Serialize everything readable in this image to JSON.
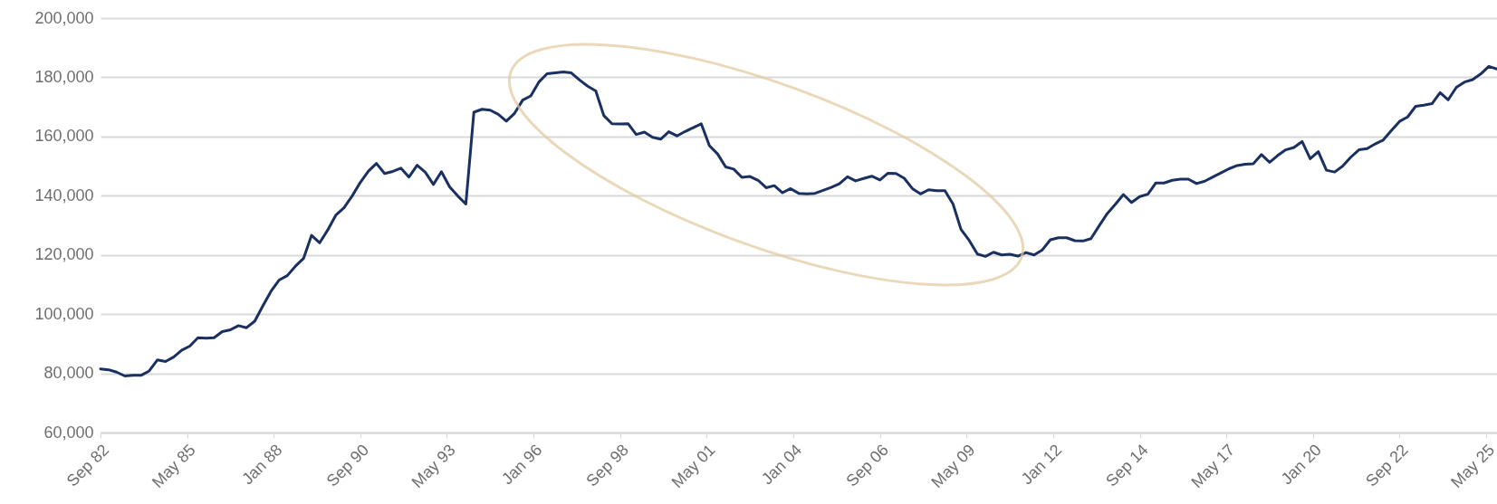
{
  "chart_data": {
    "type": "line",
    "x": [
      "1982-09",
      "1982-12",
      "1983-03",
      "1983-06",
      "1983-09",
      "1983-12",
      "1984-03",
      "1984-06",
      "1984-09",
      "1984-12",
      "1985-03",
      "1985-06",
      "1985-09",
      "1985-12",
      "1986-03",
      "1986-06",
      "1986-09",
      "1986-12",
      "1987-03",
      "1987-06",
      "1987-09",
      "1987-12",
      "1988-03",
      "1988-06",
      "1988-09",
      "1988-12",
      "1989-03",
      "1989-06",
      "1989-09",
      "1989-12",
      "1990-03",
      "1990-06",
      "1990-09",
      "1990-12",
      "1991-03",
      "1991-06",
      "1991-09",
      "1991-12",
      "1992-03",
      "1992-06",
      "1992-09",
      "1992-12",
      "1993-03",
      "1993-06",
      "1993-09",
      "1993-12",
      "1994-03",
      "1994-06",
      "1994-09",
      "1994-12",
      "1995-03",
      "1995-06",
      "1995-09",
      "1995-12",
      "1996-03",
      "1996-06",
      "1996-09",
      "1996-12",
      "1997-03",
      "1997-06",
      "1997-09",
      "1997-12",
      "1998-03",
      "1998-06",
      "1998-09",
      "1998-12",
      "1999-03",
      "1999-06",
      "1999-09",
      "1999-12",
      "2000-03",
      "2000-06",
      "2000-09",
      "2000-12",
      "2001-03",
      "2001-06",
      "2001-09",
      "2001-12",
      "2002-03",
      "2002-06",
      "2002-09",
      "2002-12",
      "2003-03",
      "2003-06",
      "2003-09",
      "2003-12",
      "2004-03",
      "2004-06",
      "2004-09",
      "2004-12",
      "2005-03",
      "2005-06",
      "2005-09",
      "2005-12",
      "2006-03",
      "2006-06",
      "2006-09",
      "2006-12",
      "2007-03",
      "2007-06",
      "2007-09",
      "2007-12",
      "2008-03",
      "2008-06",
      "2008-09",
      "2008-12",
      "2009-03",
      "2009-06",
      "2009-09",
      "2009-12",
      "2010-03",
      "2010-06",
      "2010-09",
      "2010-12",
      "2011-03",
      "2011-06",
      "2011-09",
      "2011-12",
      "2012-03",
      "2012-06",
      "2012-09",
      "2012-12",
      "2013-03",
      "2013-06",
      "2013-09",
      "2013-12",
      "2014-03",
      "2014-06",
      "2014-09",
      "2014-12",
      "2015-03",
      "2015-06",
      "2015-09",
      "2015-12",
      "2016-03",
      "2016-06",
      "2016-09",
      "2016-12",
      "2017-03",
      "2017-06",
      "2017-09",
      "2017-12",
      "2018-03",
      "2018-06",
      "2018-09",
      "2018-12",
      "2019-03",
      "2019-06",
      "2019-09",
      "2019-12",
      "2020-03",
      "2020-06",
      "2020-09",
      "2020-12",
      "2021-03",
      "2021-06",
      "2021-09",
      "2021-12",
      "2022-03",
      "2022-06",
      "2022-09",
      "2022-12",
      "2023-03",
      "2023-06",
      "2023-09",
      "2023-12",
      "2024-03",
      "2024-06",
      "2024-09",
      "2024-12",
      "2025-03",
      "2025-06",
      "2025-09"
    ],
    "series": [
      {
        "color": "#1a3060",
        "values": [
          81500,
          81200,
          80400,
          79100,
          79300,
          79300,
          80800,
          84500,
          84000,
          85500,
          87800,
          89200,
          92000,
          91900,
          92000,
          94100,
          94700,
          96100,
          95400,
          97600,
          102800,
          107700,
          111500,
          113000,
          116200,
          118800,
          126600,
          124100,
          128500,
          133500,
          135900,
          139900,
          144500,
          148300,
          150900,
          147500,
          148200,
          149300,
          146300,
          150300,
          147900,
          143800,
          148100,
          143000,
          139900,
          137200,
          168200,
          169200,
          168900,
          167500,
          165200,
          167800,
          172300,
          173700,
          178400,
          181200,
          181500,
          181800,
          181500,
          179100,
          177000,
          175400,
          167100,
          164300,
          164200,
          164300,
          160700,
          161500,
          159700,
          159100,
          161600,
          160200,
          161700,
          163000,
          164300,
          156900,
          154100,
          149700,
          149000,
          146200,
          146500,
          145200,
          142700,
          143400,
          141000,
          142400,
          140800,
          140600,
          140800,
          141800,
          142800,
          144000,
          146400,
          145000,
          145800,
          146600,
          145300,
          147600,
          147500,
          145900,
          142400,
          140600,
          142000,
          141700,
          141700,
          137200,
          128600,
          124900,
          120300,
          119500,
          120900,
          120000,
          120200,
          119600,
          120800,
          120000,
          121700,
          125100,
          125800,
          125800,
          124800,
          124700,
          125500,
          129800,
          134000,
          137100,
          140400,
          137700,
          139700,
          140500,
          144300,
          144300,
          145200,
          145600,
          145600,
          144100,
          144900,
          146300,
          147700,
          149100,
          150200,
          150600,
          150800,
          153900,
          151300,
          153600,
          155500,
          156300,
          158300,
          152500,
          154900,
          148600,
          148000,
          150000,
          153000,
          155500,
          155900,
          157500,
          158800,
          162000,
          165100,
          166600,
          170200,
          170600,
          171100,
          174800,
          172400,
          176600,
          178400,
          179200,
          181100,
          183700,
          182800
        ]
      }
    ],
    "xlim": [
      "1982-09",
      "2025-09"
    ],
    "xticks": [
      {
        "value": "1982-09",
        "label": "Sep 82"
      },
      {
        "value": "1985-05",
        "label": "May 85"
      },
      {
        "value": "1988-01",
        "label": "Jan 88"
      },
      {
        "value": "1990-09",
        "label": "Sep 90"
      },
      {
        "value": "1993-05",
        "label": "May 93"
      },
      {
        "value": "1996-01",
        "label": "Jan 96"
      },
      {
        "value": "1998-09",
        "label": "Sep 98"
      },
      {
        "value": "2001-05",
        "label": "May 01"
      },
      {
        "value": "2004-01",
        "label": "Jan 04"
      },
      {
        "value": "2006-09",
        "label": "Sep 06"
      },
      {
        "value": "2009-05",
        "label": "May 09"
      },
      {
        "value": "2012-01",
        "label": "Jan 12"
      },
      {
        "value": "2014-09",
        "label": "Sep 14"
      },
      {
        "value": "2017-05",
        "label": "May 17"
      },
      {
        "value": "2020-01",
        "label": "Jan 20"
      },
      {
        "value": "2022-09",
        "label": "Sep 22"
      },
      {
        "value": "2025-05",
        "label": "May 25"
      }
    ],
    "ylim": [
      60000,
      200000
    ],
    "yticks": [
      {
        "value": 60000,
        "label": "60,000"
      },
      {
        "value": 80000,
        "label": "80,000"
      },
      {
        "value": 100000,
        "label": "100,000"
      },
      {
        "value": 120000,
        "label": "120,000"
      },
      {
        "value": 140000,
        "label": "140,000"
      },
      {
        "value": 160000,
        "label": "160,000"
      },
      {
        "value": 180000,
        "label": "180,000"
      },
      {
        "value": 200000,
        "label": "200,000"
      }
    ],
    "grid": "y"
  }
}
